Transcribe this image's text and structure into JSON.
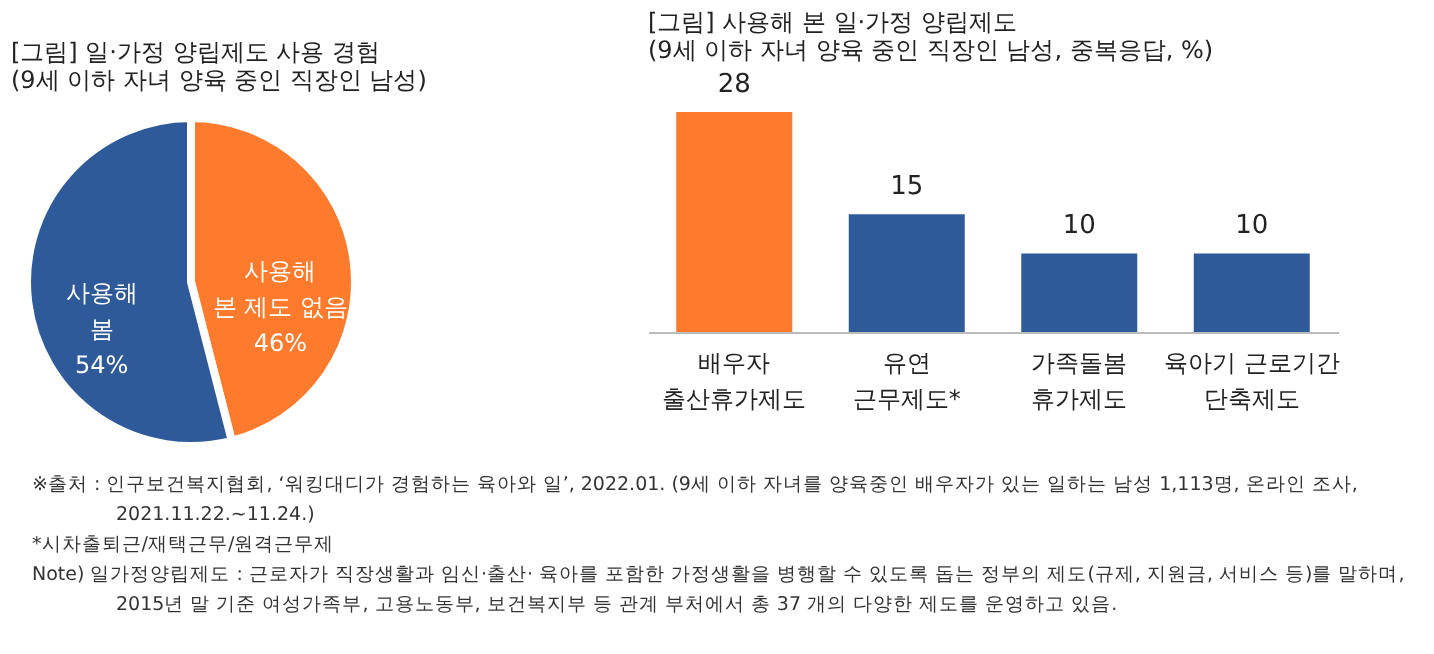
{
  "chart_data": [
    {
      "type": "pie",
      "title": "[그림] 일·가정 양립제도 사용 경험",
      "subtitle": "(9세 이하 자녀 양육 중인 직장인 남성)",
      "categories": [
        "사용해\n본 제도 없음",
        "사용해\n봄"
      ],
      "values": [
        46,
        54
      ],
      "value_labels": [
        "46%",
        "54%"
      ],
      "colors": [
        "#fe7b2e",
        "#2e5a99"
      ],
      "legend": false
    },
    {
      "type": "bar",
      "title": "[그림] 사용해 본 일·가정 양립제도",
      "subtitle": "(9세 이하 자녀 양육 중인 직장인 남성, 중복응답, %)",
      "categories": [
        "배우자\n출산휴가제도",
        "유연\n근무제도*",
        "가족돌봄\n휴가제도",
        "육아기 근로기간\n단축제도"
      ],
      "values": [
        28,
        15,
        10,
        10
      ],
      "colors": [
        "#fe7b2e",
        "#2e5a99",
        "#2e5a99",
        "#2e5a99"
      ],
      "data_labels": true,
      "tick_labels": "x",
      "grid": false,
      "annotations": [
        "※출처 : 인구보건복지협회, ‘워킹대디가 경험하는 육아와 일’, 2022.01. (9세 이하 자녀를 양육중인 배우자가 있는 일하는 남성 1,113명, 온라인 조사,\n2021.11.22.~11.24.)",
        "*시차출퇴근/재택근무/원격근무제",
        "Note) 일가정양립제도 : 근로자가 직장생활과 임신·출산· 육아를 포함한 가정생활을 병행할 수 있도록 돕는 정부의 제도(규제, 지원금, 서비스 등)를 말하며,\n2015년 말 기준 여성가족부, 고용노동부, 보건복지부 등 관계 부처에서 총 37 개의 다양한 제도를 운영하고 있음."
      ]
    }
  ]
}
